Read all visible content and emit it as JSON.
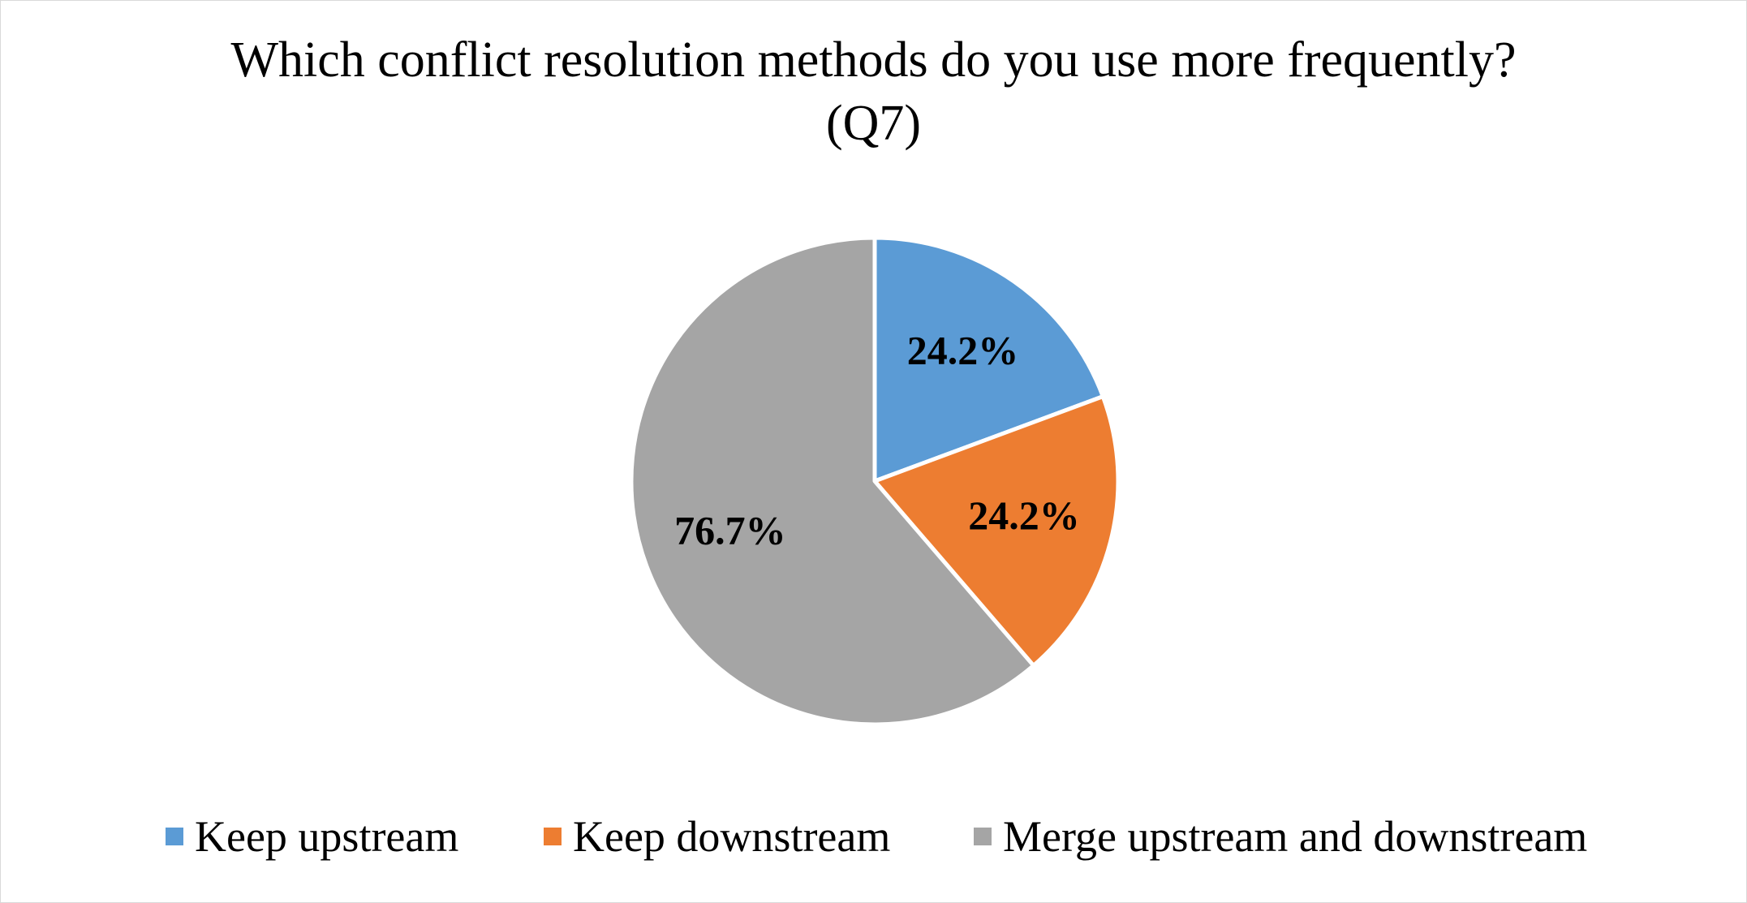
{
  "chart_data": {
    "type": "pie",
    "title_lines": [
      "Which conflict resolution methods do you use more frequently?",
      "(Q7)"
    ],
    "categories": [
      "Keep upstream",
      "Keep downstream",
      "Merge upstream and downstream"
    ],
    "values": [
      24.2,
      24.2,
      76.7
    ],
    "value_labels": [
      "24.2%",
      "24.2%",
      "76.7%"
    ],
    "colors": [
      "#5b9bd5",
      "#ed7d31",
      "#a5a5a5"
    ],
    "legend": "bottom"
  }
}
